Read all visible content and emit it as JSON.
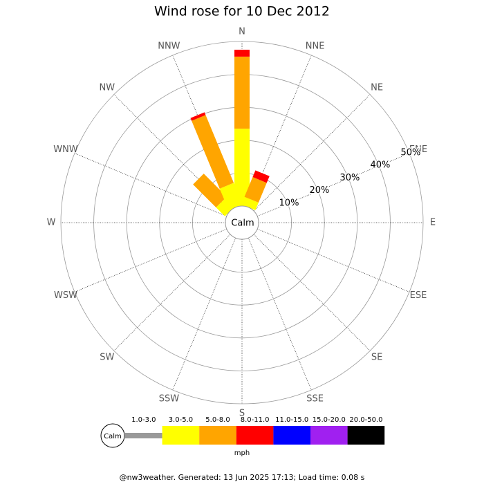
{
  "chart_data": {
    "type": "windrose",
    "title": "Wind rose for 10 Dec 2012",
    "categories": [
      "N",
      "NNE",
      "NE",
      "ENE",
      "E",
      "ESE",
      "SE",
      "SSE",
      "S",
      "SSW",
      "SW",
      "WSW",
      "W",
      "WNW",
      "NW",
      "NNW"
    ],
    "series": [
      {
        "name": "1.0-3.0",
        "color": "#999999",
        "values": [
          0,
          0,
          0,
          0,
          0,
          0,
          0,
          0,
          0,
          0,
          0,
          0,
          0,
          0,
          0,
          0
        ]
      },
      {
        "name": "3.0-5.0",
        "color": "#ffff00",
        "values": [
          23.5,
          2.5,
          0,
          0,
          0,
          0,
          0,
          0,
          0,
          0,
          0,
          0,
          0,
          0,
          3.8,
          7.1
        ]
      },
      {
        "name": "5.0-8.0",
        "color": "#ffa500",
        "values": [
          21.9,
          6.5,
          0,
          0,
          0,
          0,
          0,
          0,
          0,
          0,
          0,
          0,
          0,
          0,
          9.9,
          22.3
        ]
      },
      {
        "name": "8.0-11.0",
        "color": "#ff0000",
        "values": [
          2.1,
          2.2,
          0,
          0,
          0,
          0,
          0,
          0,
          0,
          0,
          0,
          0,
          0,
          0,
          0,
          0.9
        ]
      },
      {
        "name": "11.0-15.0",
        "color": "#0000ff",
        "values": [
          0,
          0,
          0,
          0,
          0,
          0,
          0,
          0,
          0,
          0,
          0,
          0,
          0,
          0,
          0,
          0
        ]
      },
      {
        "name": "15.0-20.0",
        "color": "#a020f0",
        "values": [
          0,
          0,
          0,
          0,
          0,
          0,
          0,
          0,
          0,
          0,
          0,
          0,
          0,
          0,
          0,
          0
        ]
      },
      {
        "name": "20.0-50.0",
        "color": "#000000",
        "values": [
          0,
          0,
          0,
          0,
          0,
          0,
          0,
          0,
          0,
          0,
          0,
          0,
          0,
          0,
          0,
          0
        ]
      }
    ],
    "rlim": [
      0,
      50
    ],
    "rticks": [
      {
        "value": 10,
        "label": "10%"
      },
      {
        "value": 20,
        "label": "20%"
      },
      {
        "value": 30,
        "label": "30%"
      },
      {
        "value": 40,
        "label": "40%"
      },
      {
        "value": 50,
        "label": "50%"
      }
    ],
    "calm_label": "Calm",
    "units": "mph",
    "footer": "@nw3weather. Generated: 13 Jun 2025 17:13; Load time: 0.08 s"
  }
}
